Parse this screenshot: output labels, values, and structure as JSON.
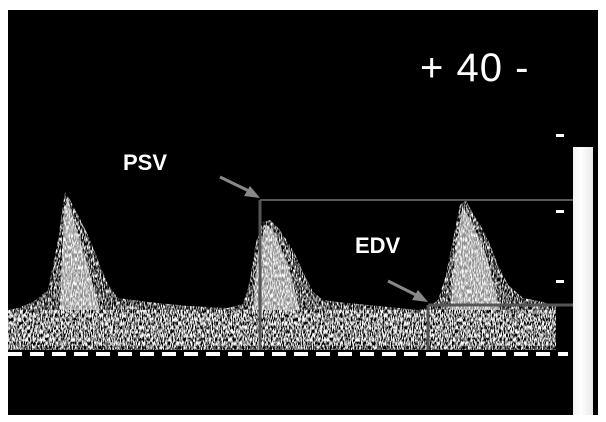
{
  "labels": {
    "psv": "PSV",
    "edv": "EDV",
    "velocity_scale": "+ 40 -"
  },
  "colors": {
    "background": "#000000",
    "spectrum": "#ffffff",
    "marker_line": "#555555",
    "arrow": "#888888"
  },
  "scale": {
    "max_velocity": 40
  }
}
